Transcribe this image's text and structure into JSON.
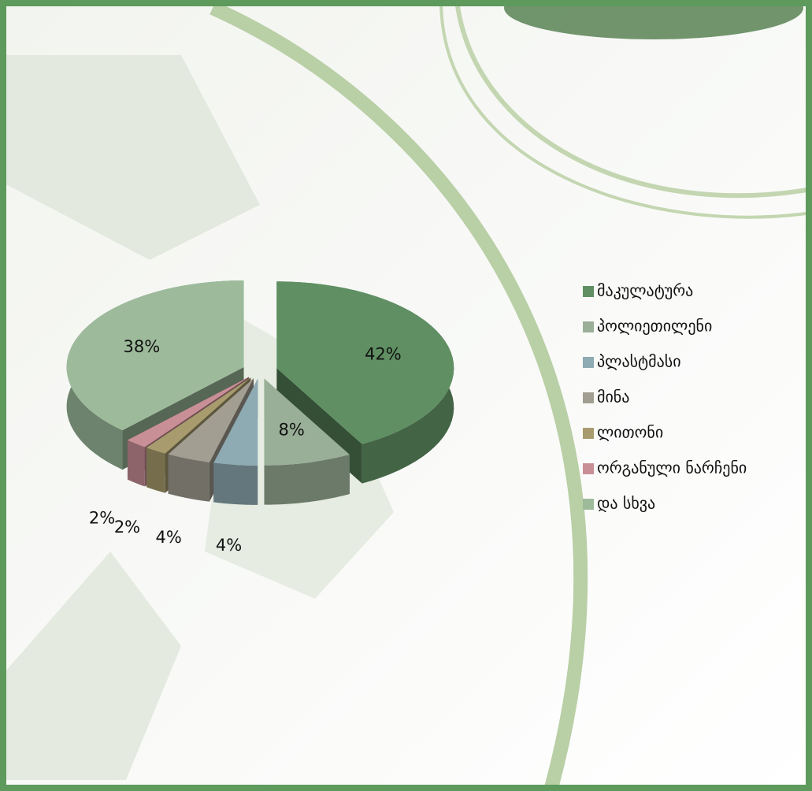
{
  "chart_data": {
    "type": "pie",
    "categories": [
      "მაკულატურა",
      "პოლიეთილენი",
      "პლასტმასი",
      "მინა",
      "ლითონი",
      "ორგანული ნარჩენი",
      "და სხვა"
    ],
    "values": [
      42,
      8,
      4,
      4,
      2,
      2,
      38
    ],
    "value_labels": [
      "42%",
      "8%",
      "4%",
      "4%",
      "2%",
      "2%",
      "38%"
    ],
    "colors": [
      "#5f8f62",
      "#9aaf98",
      "#8eaab3",
      "#a29e92",
      "#a89c6e",
      "#c98f97",
      "#9dbb9b"
    ],
    "legend": "right"
  }
}
